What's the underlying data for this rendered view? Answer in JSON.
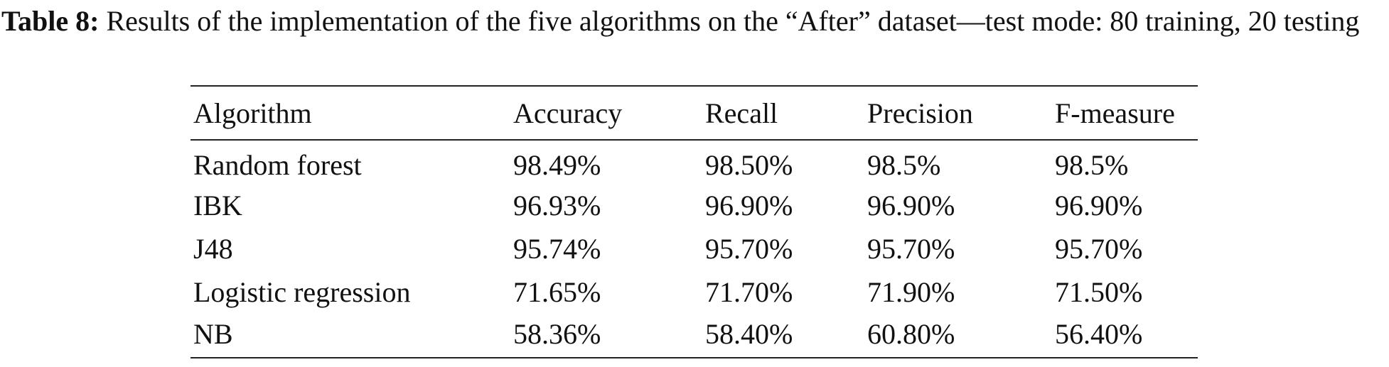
{
  "caption": {
    "label": "Table 8:",
    "text": "Results of the implementation of the five algorithms on the “After” dataset—test mode: 80 training, 20 testing"
  },
  "table": {
    "header": [
      "Algorithm",
      "Accuracy",
      "Recall",
      "Precision",
      "F-measure"
    ],
    "rows": [
      [
        "Random forest",
        "98.49%",
        "98.50%",
        "98.5%",
        "98.5%"
      ],
      [
        "IBK",
        "96.93%",
        "96.90%",
        "96.90%",
        "96.90%"
      ],
      [
        "J48",
        "95.74%",
        "95.70%",
        "95.70%",
        "95.70%"
      ],
      [
        "Logistic regression",
        "71.65%",
        "71.70%",
        "71.90%",
        "71.50%"
      ],
      [
        "NB",
        "58.36%",
        "58.40%",
        "60.80%",
        "56.40%"
      ]
    ]
  }
}
